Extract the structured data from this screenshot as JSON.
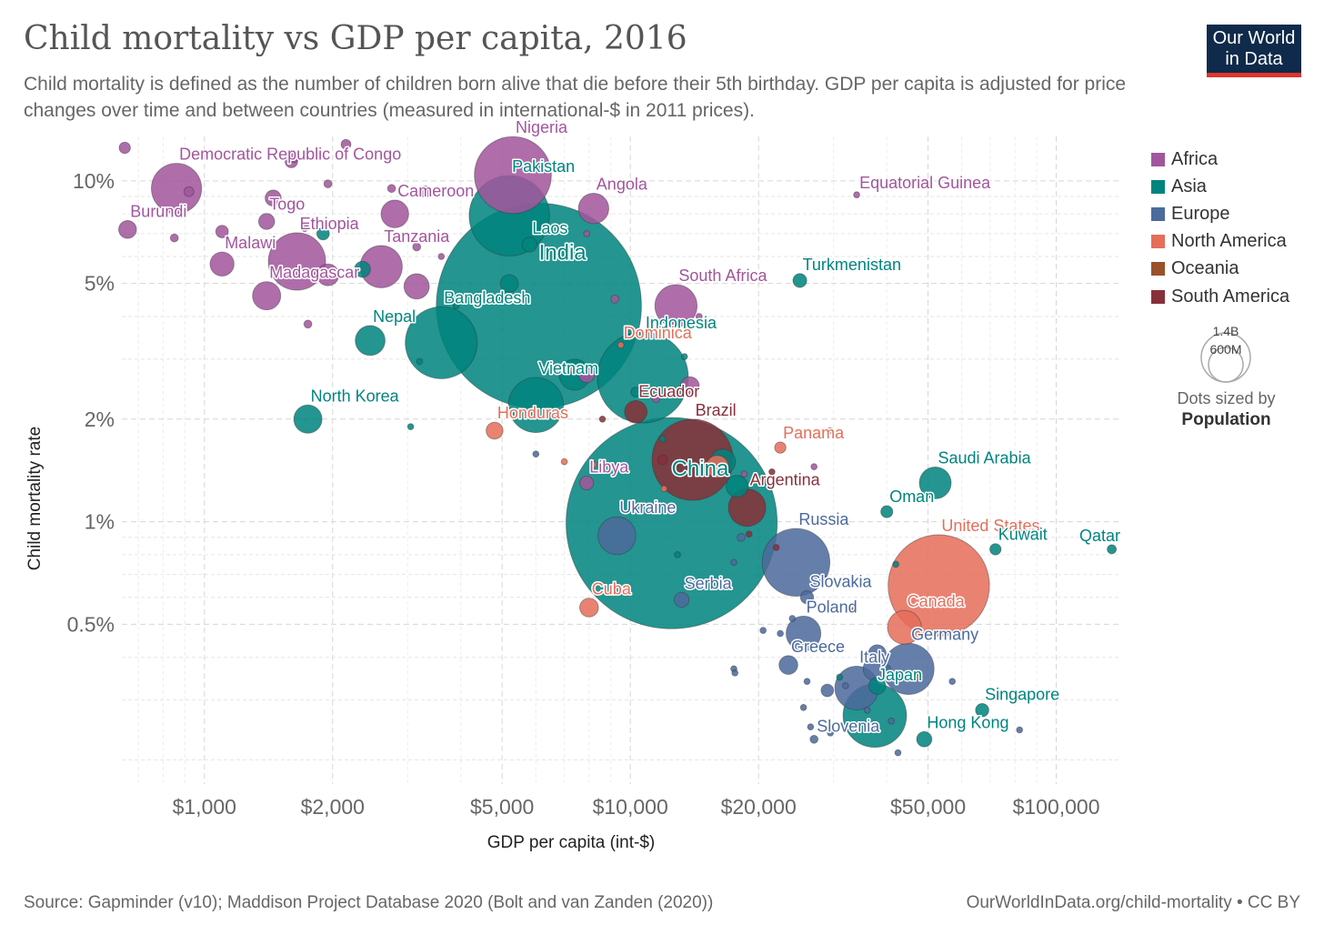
{
  "header": {
    "title": "Child mortality vs GDP per capita, 2016",
    "subtitle": "Child mortality is defined as the number of children born alive that die before their 5th birthday. GDP per capita is adjusted for price changes over time and between countries (measured in international-$ in 2011 prices).",
    "logo_line1": "Our World",
    "logo_line2": "in Data"
  },
  "footer": {
    "source": "Source: Gapminder (v10); Maddison Project Database 2020 (Bolt and van Zanden (2020))",
    "credit": "OurWorldInData.org/child-mortality • CC BY"
  },
  "colors": {
    "Africa": "#a2559c",
    "Asia": "#00847e",
    "Europe": "#4c6a9c",
    "North America": "#e56e5a",
    "Oceania": "#9a5129",
    "South America": "#883039"
  },
  "legend": {
    "items": [
      "Africa",
      "Asia",
      "Europe",
      "North America",
      "Oceania",
      "South America"
    ],
    "size_big": "1.4B",
    "size_small": "600M",
    "size_note_1": "Dots sized by",
    "size_note_2": "Population"
  },
  "chart_data": {
    "type": "scatter",
    "title": "Child mortality vs GDP per capita, 2016",
    "xlabel": "GDP per capita (int-$)",
    "ylabel": "Child mortality rate",
    "x_scale": "log",
    "y_scale": "log",
    "xlim": [
      640,
      140000
    ],
    "ylim": [
      0.17,
      13.5
    ],
    "x_ticks": [
      1000,
      2000,
      5000,
      10000,
      20000,
      50000,
      100000
    ],
    "x_tick_labels": [
      "$1,000",
      "$2,000",
      "$5,000",
      "$10,000",
      "$20,000",
      "$50,000",
      "$100,000"
    ],
    "y_ticks": [
      0.5,
      1,
      2,
      5,
      10
    ],
    "y_tick_labels": [
      "0.5%",
      "1%",
      "2%",
      "5%",
      "10%"
    ],
    "grid": true,
    "legend_position": "right",
    "points": [
      {
        "label": "India",
        "region": "Asia",
        "x": 6100,
        "y": 4.3,
        "pop": 1324
      },
      {
        "label": "China",
        "region": "Asia",
        "x": 12500,
        "y": 0.99,
        "pop": 1403
      },
      {
        "label": "Nigeria",
        "region": "Africa",
        "x": 5300,
        "y": 10.4,
        "pop": 186
      },
      {
        "label": "Pakistan",
        "region": "Asia",
        "x": 5200,
        "y": 7.9,
        "pop": 203
      },
      {
        "label": "Indonesia",
        "region": "Asia",
        "x": 10700,
        "y": 2.65,
        "pop": 261
      },
      {
        "label": "United States",
        "region": "North America",
        "x": 53000,
        "y": 0.65,
        "pop": 323
      },
      {
        "label": "Brazil",
        "region": "South America",
        "x": 14000,
        "y": 1.52,
        "pop": 207
      },
      {
        "label": "Bangladesh",
        "region": "Asia",
        "x": 3600,
        "y": 3.35,
        "pop": 163
      },
      {
        "label": "Russia",
        "region": "Europe",
        "x": 24500,
        "y": 0.76,
        "pop": 144
      },
      {
        "label": "Japan",
        "region": "Asia",
        "x": 37500,
        "y": 0.27,
        "pop": 127
      },
      {
        "label": "Ethiopia",
        "region": "Africa",
        "x": 1650,
        "y": 5.8,
        "pop": 103
      },
      {
        "label": "Vietnam",
        "region": "Asia",
        "x": 6000,
        "y": 2.2,
        "pop": 95
      },
      {
        "label": "Democratic Republic of Congo",
        "region": "Africa",
        "x": 860,
        "y": 9.5,
        "pop": 79
      },
      {
        "label": "Germany",
        "region": "Europe",
        "x": 45000,
        "y": 0.37,
        "pop": 82
      },
      {
        "label": "Burundi",
        "region": "Africa",
        "x": 660,
        "y": 7.2,
        "pop": 10
      },
      {
        "label": "Togo",
        "region": "Africa",
        "x": 1400,
        "y": 7.6,
        "pop": 8
      },
      {
        "label": "Cameroon",
        "region": "Africa",
        "x": 2800,
        "y": 8.0,
        "pop": 24
      },
      {
        "label": "Angola",
        "region": "Africa",
        "x": 8200,
        "y": 8.3,
        "pop": 29
      },
      {
        "label": "Laos",
        "region": "Asia",
        "x": 5800,
        "y": 6.5,
        "pop": 7
      },
      {
        "label": "Malawi",
        "region": "Africa",
        "x": 1100,
        "y": 5.7,
        "pop": 18
      },
      {
        "label": "Tanzania",
        "region": "Africa",
        "x": 2600,
        "y": 5.6,
        "pop": 56
      },
      {
        "label": "Madagascar",
        "region": "Africa",
        "x": 1400,
        "y": 4.6,
        "pop": 25
      },
      {
        "label": "Nepal",
        "region": "Asia",
        "x": 2450,
        "y": 3.4,
        "pop": 28
      },
      {
        "label": "North Korea",
        "region": "Asia",
        "x": 1750,
        "y": 2.0,
        "pop": 25
      },
      {
        "label": "Equatorial Guinea",
        "region": "Africa",
        "x": 34000,
        "y": 9.1,
        "pop": 1
      },
      {
        "label": "Turkmenistan",
        "region": "Asia",
        "x": 25000,
        "y": 5.1,
        "pop": 6
      },
      {
        "label": "South Africa",
        "region": "Africa",
        "x": 12800,
        "y": 4.3,
        "pop": 56
      },
      {
        "label": "Dominica",
        "region": "North America",
        "x": 9500,
        "y": 3.3,
        "pop": 0.1
      },
      {
        "label": "Ecuador",
        "region": "South America",
        "x": 10300,
        "y": 2.1,
        "pop": 16
      },
      {
        "label": "Honduras",
        "region": "North America",
        "x": 4800,
        "y": 1.85,
        "pop": 9
      },
      {
        "label": "Panama",
        "region": "North America",
        "x": 22500,
        "y": 1.65,
        "pop": 4
      },
      {
        "label": "Libya",
        "region": "Africa",
        "x": 7900,
        "y": 1.3,
        "pop": 6
      },
      {
        "label": "Argentina",
        "region": "South America",
        "x": 18800,
        "y": 1.1,
        "pop": 44
      },
      {
        "label": "Saudi Arabia",
        "region": "Asia",
        "x": 52000,
        "y": 1.3,
        "pop": 32
      },
      {
        "label": "Oman",
        "region": "Asia",
        "x": 40000,
        "y": 1.07,
        "pop": 4.5
      },
      {
        "label": "Kuwait",
        "region": "Asia",
        "x": 72000,
        "y": 0.83,
        "pop": 4
      },
      {
        "label": "Qatar",
        "region": "Asia",
        "x": 135000,
        "y": 0.83,
        "pop": 2.6
      },
      {
        "label": "Ukraine",
        "region": "Europe",
        "x": 9300,
        "y": 0.91,
        "pop": 45
      },
      {
        "label": "Cuba",
        "region": "North America",
        "x": 8000,
        "y": 0.56,
        "pop": 11
      },
      {
        "label": "Serbia",
        "region": "Europe",
        "x": 13200,
        "y": 0.59,
        "pop": 7
      },
      {
        "label": "Slovakia",
        "region": "Europe",
        "x": 26000,
        "y": 0.6,
        "pop": 5.4
      },
      {
        "label": "Canada",
        "region": "North America",
        "x": 44000,
        "y": 0.49,
        "pop": 36
      },
      {
        "label": "Poland",
        "region": "Europe",
        "x": 25500,
        "y": 0.47,
        "pop": 38
      },
      {
        "label": "Greece",
        "region": "Europe",
        "x": 23500,
        "y": 0.38,
        "pop": 11
      },
      {
        "label": "Italy",
        "region": "Europe",
        "x": 34000,
        "y": 0.325,
        "pop": 60
      },
      {
        "label": "Singapore",
        "region": "Asia",
        "x": 67000,
        "y": 0.28,
        "pop": 5.6
      },
      {
        "label": "Hong Kong",
        "region": "Asia",
        "x": 49000,
        "y": 0.23,
        "pop": 7.3
      },
      {
        "label": "Slovenia",
        "region": "Europe",
        "x": 27000,
        "y": 0.23,
        "pop": 2
      },
      {
        "label": "",
        "region": "Africa",
        "x": 650,
        "y": 12.5,
        "pop": 4
      },
      {
        "label": "",
        "region": "Africa",
        "x": 2150,
        "y": 12.8,
        "pop": 3
      },
      {
        "label": "",
        "region": "Africa",
        "x": 1600,
        "y": 11.4,
        "pop": 5
      },
      {
        "label": "",
        "region": "Africa",
        "x": 1620,
        "y": 11.7,
        "pop": 3
      },
      {
        "label": "",
        "region": "Africa",
        "x": 920,
        "y": 9.3,
        "pop": 3
      },
      {
        "label": "",
        "region": "Africa",
        "x": 1950,
        "y": 9.8,
        "pop": 2
      },
      {
        "label": "",
        "region": "Africa",
        "x": 2750,
        "y": 9.5,
        "pop": 2
      },
      {
        "label": "",
        "region": "Africa",
        "x": 3300,
        "y": 9.3,
        "pop": 4
      },
      {
        "label": "",
        "region": "Africa",
        "x": 1450,
        "y": 8.9,
        "pop": 8
      },
      {
        "label": "",
        "region": "Africa",
        "x": 1100,
        "y": 7.1,
        "pop": 5
      },
      {
        "label": "",
        "region": "Africa",
        "x": 850,
        "y": 6.8,
        "pop": 2
      },
      {
        "label": "",
        "region": "Africa",
        "x": 7900,
        "y": 7.0,
        "pop": 1
      },
      {
        "label": "",
        "region": "Africa",
        "x": 1720,
        "y": 7.3,
        "pop": 2
      },
      {
        "label": "",
        "region": "Africa",
        "x": 3150,
        "y": 6.4,
        "pop": 2
      },
      {
        "label": "",
        "region": "Africa",
        "x": 1950,
        "y": 5.3,
        "pop": 15
      },
      {
        "label": "",
        "region": "Africa",
        "x": 3150,
        "y": 4.9,
        "pop": 20
      },
      {
        "label": "",
        "region": "Africa",
        "x": 1750,
        "y": 3.8,
        "pop": 2
      },
      {
        "label": "",
        "region": "Africa",
        "x": 3600,
        "y": 6.0,
        "pop": 1
      },
      {
        "label": "",
        "region": "Africa",
        "x": 9200,
        "y": 4.5,
        "pop": 2
      },
      {
        "label": "",
        "region": "Africa",
        "x": 14500,
        "y": 4.0,
        "pop": 1
      },
      {
        "label": "",
        "region": "Africa",
        "x": 7900,
        "y": 2.7,
        "pop": 8
      },
      {
        "label": "",
        "region": "Africa",
        "x": 13800,
        "y": 2.5,
        "pop": 11
      },
      {
        "label": "",
        "region": "Africa",
        "x": 11500,
        "y": 2.3,
        "pop": 2
      },
      {
        "label": "",
        "region": "Africa",
        "x": 27000,
        "y": 1.45,
        "pop": 1
      },
      {
        "label": "",
        "region": "Africa",
        "x": 18500,
        "y": 1.38,
        "pop": 1
      },
      {
        "label": "",
        "region": "Asia",
        "x": 1900,
        "y": 7.0,
        "pop": 5
      },
      {
        "label": "",
        "region": "Asia",
        "x": 2350,
        "y": 5.5,
        "pop": 8
      },
      {
        "label": "",
        "region": "Asia",
        "x": 5200,
        "y": 5.0,
        "pop": 10
      },
      {
        "label": "",
        "region": "Asia",
        "x": 3900,
        "y": 4.3,
        "pop": 1
      },
      {
        "label": "",
        "region": "Asia",
        "x": 3200,
        "y": 2.95,
        "pop": 1
      },
      {
        "label": "",
        "region": "Asia",
        "x": 13400,
        "y": 3.05,
        "pop": 1
      },
      {
        "label": "",
        "region": "Asia",
        "x": 7400,
        "y": 2.7,
        "pop": 30
      },
      {
        "label": "",
        "region": "Asia",
        "x": 10300,
        "y": 2.4,
        "pop": 3
      },
      {
        "label": "",
        "region": "Asia",
        "x": 3050,
        "y": 1.9,
        "pop": 1
      },
      {
        "label": "",
        "region": "Asia",
        "x": 11900,
        "y": 1.75,
        "pop": 1
      },
      {
        "label": "",
        "region": "Asia",
        "x": 16500,
        "y": 1.5,
        "pop": 20
      },
      {
        "label": "",
        "region": "Asia",
        "x": 17800,
        "y": 1.27,
        "pop": 15
      },
      {
        "label": "",
        "region": "Asia",
        "x": 12900,
        "y": 0.8,
        "pop": 1
      },
      {
        "label": "",
        "region": "Asia",
        "x": 11000,
        "y": 1.07,
        "pop": 1
      },
      {
        "label": "",
        "region": "Asia",
        "x": 42000,
        "y": 0.75,
        "pop": 1
      },
      {
        "label": "",
        "region": "Asia",
        "x": 31000,
        "y": 0.35,
        "pop": 1
      },
      {
        "label": "",
        "region": "Asia",
        "x": 38000,
        "y": 0.33,
        "pop": 9
      },
      {
        "label": "",
        "region": "Europe",
        "x": 6000,
        "y": 1.58,
        "pop": 1
      },
      {
        "label": "",
        "region": "Europe",
        "x": 18200,
        "y": 0.9,
        "pop": 2
      },
      {
        "label": "",
        "region": "Europe",
        "x": 17500,
        "y": 0.76,
        "pop": 1
      },
      {
        "label": "",
        "region": "Europe",
        "x": 28500,
        "y": 0.68,
        "pop": 1
      },
      {
        "label": "",
        "region": "Europe",
        "x": 24000,
        "y": 0.52,
        "pop": 1
      },
      {
        "label": "",
        "region": "Europe",
        "x": 20500,
        "y": 0.48,
        "pop": 1
      },
      {
        "label": "",
        "region": "Europe",
        "x": 22500,
        "y": 0.47,
        "pop": 1
      },
      {
        "label": "",
        "region": "Europe",
        "x": 38000,
        "y": 0.41,
        "pop": 10
      },
      {
        "label": "",
        "region": "Europe",
        "x": 37500,
        "y": 0.37,
        "pop": 17
      },
      {
        "label": "",
        "region": "Europe",
        "x": 40000,
        "y": 0.37,
        "pop": 2
      },
      {
        "label": "",
        "region": "Europe",
        "x": 17500,
        "y": 0.37,
        "pop": 1
      },
      {
        "label": "",
        "region": "Europe",
        "x": 17600,
        "y": 0.36,
        "pop": 1
      },
      {
        "label": "",
        "region": "Europe",
        "x": 26000,
        "y": 0.34,
        "pop": 1
      },
      {
        "label": "",
        "region": "Europe",
        "x": 29000,
        "y": 0.32,
        "pop": 5
      },
      {
        "label": "",
        "region": "Europe",
        "x": 32000,
        "y": 0.33,
        "pop": 1
      },
      {
        "label": "",
        "region": "Europe",
        "x": 57000,
        "y": 0.34,
        "pop": 1
      },
      {
        "label": "",
        "region": "Europe",
        "x": 25500,
        "y": 0.285,
        "pop": 1
      },
      {
        "label": "",
        "region": "Europe",
        "x": 36000,
        "y": 0.28,
        "pop": 1
      },
      {
        "label": "",
        "region": "Europe",
        "x": 26500,
        "y": 0.25,
        "pop": 1
      },
      {
        "label": "",
        "region": "Europe",
        "x": 29500,
        "y": 0.24,
        "pop": 1
      },
      {
        "label": "",
        "region": "Europe",
        "x": 41000,
        "y": 0.26,
        "pop": 1
      },
      {
        "label": "",
        "region": "Europe",
        "x": 42500,
        "y": 0.21,
        "pop": 1
      },
      {
        "label": "",
        "region": "Europe",
        "x": 82000,
        "y": 0.245,
        "pop": 1
      },
      {
        "label": "",
        "region": "North America",
        "x": 7300,
        "y": 2.8,
        "pop": 1
      },
      {
        "label": "",
        "region": "North America",
        "x": 7000,
        "y": 1.5,
        "pop": 1
      },
      {
        "label": "",
        "region": "North America",
        "x": 8200,
        "y": 1.47,
        "pop": 1
      },
      {
        "label": "",
        "region": "North America",
        "x": 12000,
        "y": 1.25,
        "pop": 1
      },
      {
        "label": "",
        "region": "North America",
        "x": 16000,
        "y": 1.45,
        "pop": 16
      },
      {
        "label": "",
        "region": "North America",
        "x": 29500,
        "y": 1.85,
        "pop": 0.3
      },
      {
        "label": "",
        "region": "Oceania",
        "x": 33500,
        "y": 0.55,
        "pop": 1
      },
      {
        "label": "",
        "region": "Oceania",
        "x": 47500,
        "y": 0.35,
        "pop": 1
      },
      {
        "label": "",
        "region": "South America",
        "x": 8600,
        "y": 2.0,
        "pop": 1
      },
      {
        "label": "",
        "region": "South America",
        "x": 11900,
        "y": 1.52,
        "pop": 3
      },
      {
        "label": "",
        "region": "South America",
        "x": 19000,
        "y": 0.92,
        "pop": 1
      },
      {
        "label": "",
        "region": "South America",
        "x": 22000,
        "y": 0.84,
        "pop": 1
      },
      {
        "label": "",
        "region": "South America",
        "x": 21500,
        "y": 1.4,
        "pop": 1
      }
    ]
  }
}
